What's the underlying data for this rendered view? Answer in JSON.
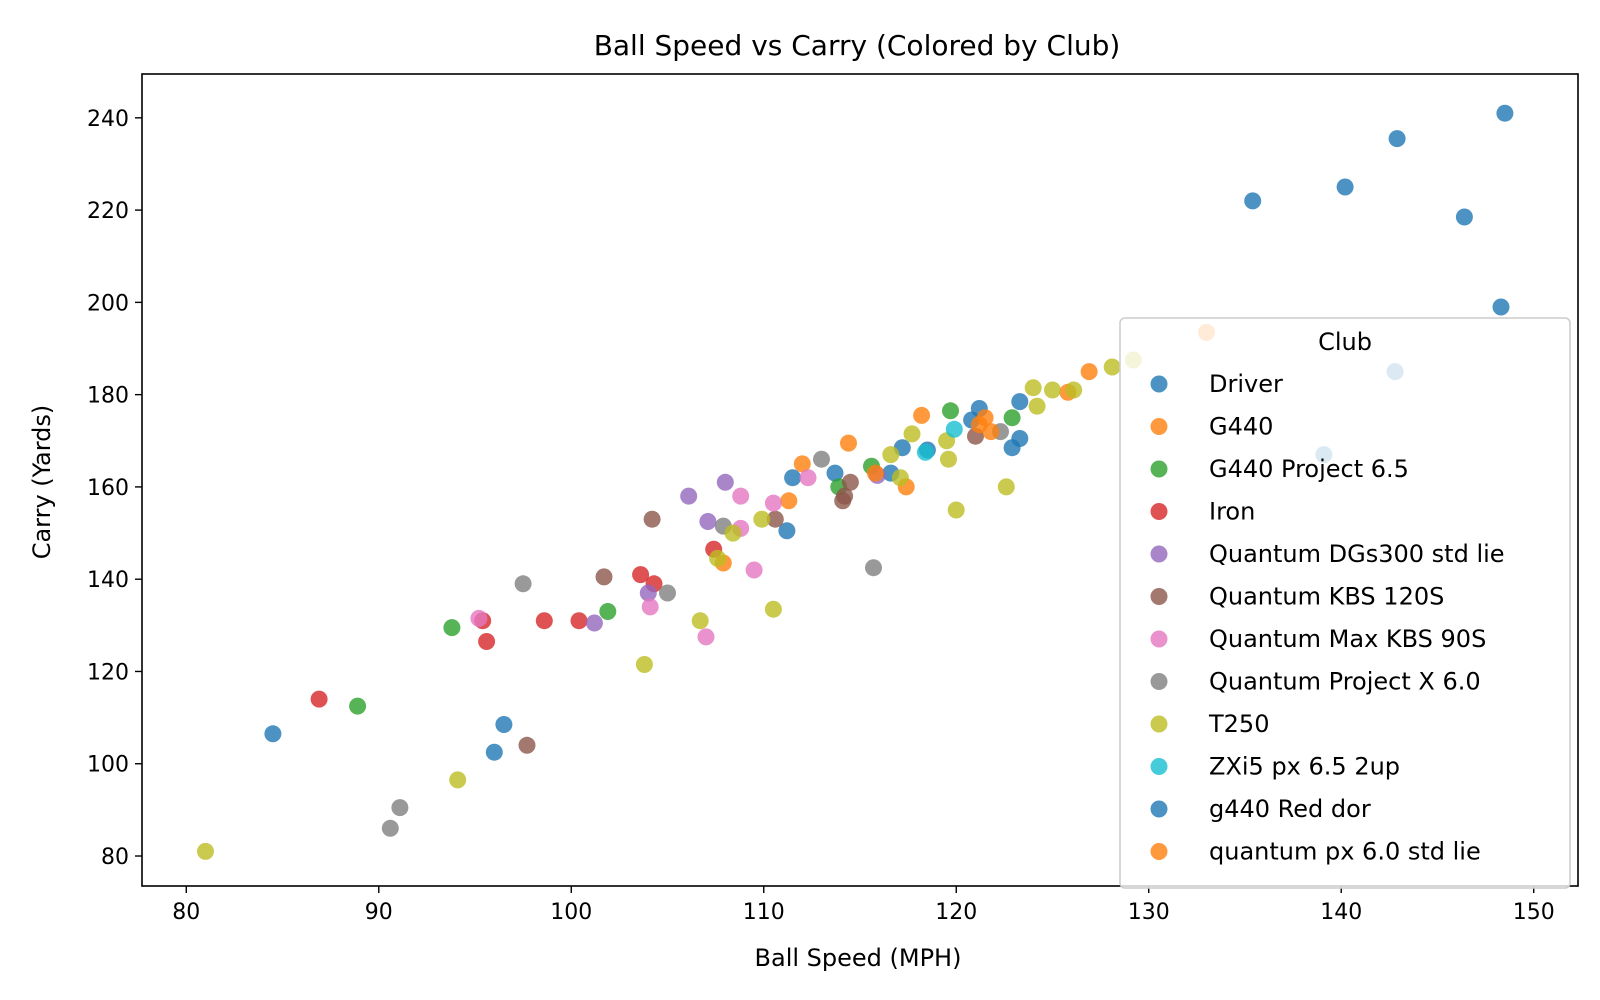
{
  "chart_data": {
    "type": "scatter",
    "title": "Ball Speed vs Carry (Colored by Club)",
    "xlabel": "Ball Speed (MPH)",
    "ylabel": "Carry (Yards)",
    "xlim": [
      77.7,
      152.3
    ],
    "ylim": [
      73.5,
      249.5
    ],
    "xticks": [
      80,
      90,
      100,
      110,
      120,
      130,
      140,
      150
    ],
    "yticks": [
      80,
      100,
      120,
      140,
      160,
      180,
      200,
      220,
      240
    ],
    "legend": {
      "title": "Club",
      "placement": "center-right"
    },
    "series": [
      {
        "name": "Driver",
        "color": "#1f77b4",
        "points": [
          [
            84.5,
            106.5
          ],
          [
            96.0,
            102.5
          ],
          [
            96.5,
            108.5
          ],
          [
            111.2,
            150.5
          ],
          [
            111.5,
            162
          ],
          [
            113.7,
            163
          ],
          [
            116.6,
            163
          ],
          [
            117.2,
            168.5
          ],
          [
            118.5,
            168
          ],
          [
            120.8,
            174.5
          ],
          [
            121.2,
            177
          ],
          [
            122.9,
            168.5
          ],
          [
            123.3,
            170.5
          ],
          [
            123.3,
            178.5
          ],
          [
            135.4,
            222
          ],
          [
            140.2,
            225
          ],
          [
            142.9,
            235.5
          ],
          [
            146.4,
            218.5
          ],
          [
            148.3,
            199
          ],
          [
            148.5,
            241
          ]
        ]
      },
      {
        "name": "G440",
        "color": "#ff7f0e",
        "points": [
          [
            107.9,
            143.5
          ],
          [
            111.3,
            157
          ],
          [
            112,
            165
          ],
          [
            114.4,
            169.5
          ],
          [
            117.4,
            160
          ],
          [
            118.2,
            175.5
          ],
          [
            121.5,
            175
          ],
          [
            125.8,
            180.5
          ],
          [
            126.9,
            185
          ],
          [
            133,
            193.5
          ]
        ]
      },
      {
        "name": "G440 Project 6.5",
        "color": "#2ca02c",
        "points": [
          [
            88.9,
            112.5
          ],
          [
            93.8,
            129.5
          ],
          [
            101.9,
            133
          ],
          [
            113.9,
            160
          ],
          [
            115.6,
            164.5
          ],
          [
            119.7,
            176.5
          ],
          [
            122.9,
            175
          ]
        ]
      },
      {
        "name": "Iron",
        "color": "#d62728",
        "points": [
          [
            86.9,
            114
          ],
          [
            95.4,
            131
          ],
          [
            95.6,
            126.5
          ],
          [
            98.6,
            131
          ],
          [
            100.4,
            131
          ],
          [
            103.6,
            141
          ],
          [
            104.3,
            139
          ],
          [
            107.4,
            146.5
          ]
        ]
      },
      {
        "name": "Quantum DGs300 std lie",
        "color": "#9467bd",
        "points": [
          [
            101.2,
            130.5
          ],
          [
            104,
            137
          ],
          [
            106.1,
            158
          ],
          [
            107.1,
            152.5
          ],
          [
            108,
            161
          ],
          [
            115.9,
            162.5
          ]
        ]
      },
      {
        "name": "Quantum KBS 120S",
        "color": "#8c564b",
        "points": [
          [
            97.7,
            104
          ],
          [
            101.7,
            140.5
          ],
          [
            104.2,
            153
          ],
          [
            110.6,
            153
          ],
          [
            114.1,
            157
          ],
          [
            114.2,
            158
          ],
          [
            114.5,
            161
          ],
          [
            121,
            171
          ]
        ]
      },
      {
        "name": "Quantum Max KBS 90S",
        "color": "#e377c2",
        "points": [
          [
            95.2,
            131.5
          ],
          [
            104.1,
            134
          ],
          [
            107,
            127.5
          ],
          [
            108.8,
            151
          ],
          [
            108.8,
            158
          ],
          [
            109.5,
            142
          ],
          [
            110.5,
            156.5
          ],
          [
            112.3,
            162
          ]
        ]
      },
      {
        "name": "Quantum Project X 6.0",
        "color": "#7f7f7f",
        "points": [
          [
            90.6,
            86
          ],
          [
            91.1,
            90.5
          ],
          [
            97.5,
            139
          ],
          [
            105,
            137
          ],
          [
            107.9,
            151.5
          ],
          [
            113,
            166
          ],
          [
            115.7,
            142.5
          ],
          [
            122.3,
            172
          ]
        ]
      },
      {
        "name": "T250",
        "color": "#bcbd22",
        "points": [
          [
            81,
            81
          ],
          [
            94.1,
            96.5
          ],
          [
            103.8,
            121.5
          ],
          [
            106.7,
            131
          ],
          [
            107.6,
            144.5
          ],
          [
            108.4,
            150
          ],
          [
            109.9,
            153
          ],
          [
            110.5,
            133.5
          ],
          [
            116.6,
            167
          ],
          [
            117.1,
            162
          ],
          [
            117.7,
            171.5
          ],
          [
            119.5,
            170
          ],
          [
            119.6,
            166
          ],
          [
            120,
            155
          ],
          [
            122.6,
            160
          ],
          [
            124,
            181.5
          ],
          [
            124.2,
            177.5
          ],
          [
            125,
            181
          ],
          [
            126.1,
            181
          ],
          [
            128.1,
            186
          ],
          [
            129.2,
            187.5
          ]
        ]
      },
      {
        "name": "ZXi5 px 6.5 2up",
        "color": "#17becf",
        "points": [
          [
            118.4,
            167.5
          ],
          [
            119.9,
            172.5
          ]
        ]
      },
      {
        "name": "g440 Red dor",
        "color": "#1f77b4",
        "points": [
          [
            139.1,
            167
          ],
          [
            142.8,
            185
          ]
        ]
      },
      {
        "name": "quantum px 6.0 std lie",
        "color": "#ff7f0e",
        "points": [
          [
            115.8,
            163
          ],
          [
            121.2,
            173.5
          ],
          [
            121.8,
            172
          ]
        ]
      }
    ]
  }
}
